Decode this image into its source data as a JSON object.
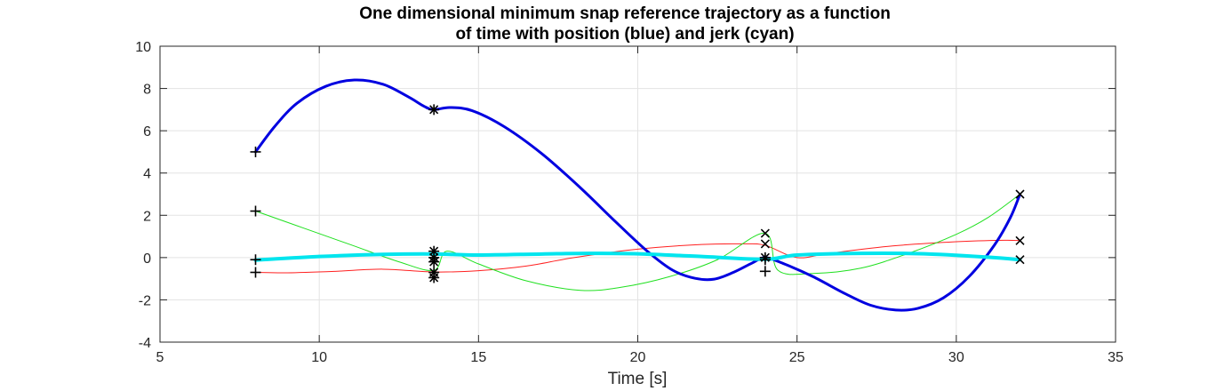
{
  "chart_data": {
    "type": "line",
    "title": [
      "One dimensional minimum snap reference trajectory as a function",
      "of time with position (blue) and jerk (cyan)"
    ],
    "xlabel": "Time [s]",
    "ylabel": "",
    "xlim": [
      5,
      35
    ],
    "ylim": [
      -4,
      10
    ],
    "xticks": [
      5,
      10,
      15,
      20,
      25,
      30,
      35
    ],
    "yticks": [
      -4,
      -2,
      0,
      2,
      4,
      6,
      8,
      10
    ],
    "grid": true,
    "series": [
      {
        "color": "#0000e0",
        "width": 3,
        "points": [
          [
            8,
            5
          ],
          [
            8.6,
            6.2
          ],
          [
            9.3,
            7.3
          ],
          [
            10.2,
            8.1
          ],
          [
            11.1,
            8.4
          ],
          [
            12,
            8.2
          ],
          [
            12.8,
            7.6
          ],
          [
            13.3,
            7.15
          ],
          [
            13.6,
            7
          ],
          [
            14.1,
            7.1
          ],
          [
            14.8,
            6.95
          ],
          [
            15.8,
            6.2
          ],
          [
            17,
            4.9
          ],
          [
            18.2,
            3.3
          ],
          [
            19.3,
            1.7
          ],
          [
            20.3,
            0.3
          ],
          [
            21.1,
            -0.6
          ],
          [
            21.8,
            -0.98
          ],
          [
            22.4,
            -1.02
          ],
          [
            23,
            -0.7
          ],
          [
            23.6,
            -0.25
          ],
          [
            24,
            0
          ],
          [
            24.6,
            -0.3
          ],
          [
            25.5,
            -0.9
          ],
          [
            26.5,
            -1.7
          ],
          [
            27.3,
            -2.25
          ],
          [
            28.1,
            -2.48
          ],
          [
            28.8,
            -2.4
          ],
          [
            29.6,
            -1.9
          ],
          [
            30.4,
            -0.9
          ],
          [
            31.2,
            0.6
          ],
          [
            31.7,
            1.9
          ],
          [
            32,
            3
          ]
        ]
      },
      {
        "color": "#00e5ee",
        "width": 4,
        "points": [
          [
            8,
            -0.12
          ],
          [
            10,
            0.05
          ],
          [
            12,
            0.15
          ],
          [
            13.6,
            0.17
          ],
          [
            15,
            0.12
          ],
          [
            17,
            0.17
          ],
          [
            18.5,
            0.2
          ],
          [
            20,
            0.18
          ],
          [
            22,
            0.05
          ],
          [
            24,
            -0.08
          ],
          [
            25,
            0.12
          ],
          [
            27,
            0.2
          ],
          [
            29,
            0.18
          ],
          [
            31,
            0.02
          ],
          [
            32,
            -0.1
          ]
        ]
      },
      {
        "color": "#ff2020",
        "width": 1,
        "points": [
          [
            8,
            -0.7
          ],
          [
            9,
            -0.72
          ],
          [
            10.5,
            -0.65
          ],
          [
            12,
            -0.55
          ],
          [
            13.6,
            -0.68
          ],
          [
            15,
            -0.62
          ],
          [
            16.5,
            -0.4
          ],
          [
            18,
            0
          ],
          [
            20,
            0.4
          ],
          [
            22,
            0.62
          ],
          [
            23.3,
            0.65
          ],
          [
            24,
            0.58
          ],
          [
            25,
            0
          ],
          [
            26,
            0.2
          ],
          [
            28,
            0.55
          ],
          [
            30,
            0.75
          ],
          [
            31.5,
            0.82
          ],
          [
            32,
            0.8
          ]
        ]
      },
      {
        "color": "#20e020",
        "width": 1,
        "points": [
          [
            8,
            2.2
          ],
          [
            9.5,
            1.4
          ],
          [
            11,
            0.6
          ],
          [
            12.5,
            -0.2
          ],
          [
            13.6,
            -0.6
          ],
          [
            14,
            0.3
          ],
          [
            15,
            -0.3
          ],
          [
            16.5,
            -1.1
          ],
          [
            18.2,
            -1.55
          ],
          [
            19.5,
            -1.4
          ],
          [
            21,
            -0.9
          ],
          [
            22.5,
            -0.1
          ],
          [
            24,
            1.15
          ],
          [
            24.4,
            -0.6
          ],
          [
            25.5,
            -0.75
          ],
          [
            27,
            -0.5
          ],
          [
            28.5,
            0.2
          ],
          [
            30,
            1.1
          ],
          [
            31,
            1.9
          ],
          [
            32,
            3
          ]
        ]
      }
    ],
    "markers": [
      {
        "symbol": "plus",
        "points": [
          [
            8,
            5
          ],
          [
            8,
            2.2
          ],
          [
            8,
            -0.1
          ],
          [
            8,
            -0.7
          ]
        ]
      },
      {
        "symbol": "star",
        "points": [
          [
            13.6,
            7
          ],
          [
            13.6,
            0.3
          ],
          [
            13.6,
            0
          ],
          [
            13.6,
            -0.2
          ],
          [
            13.6,
            -0.7
          ],
          [
            13.6,
            -0.95
          ]
        ]
      },
      {
        "symbol": "plus",
        "points": [
          [
            24,
            0
          ],
          [
            24,
            -0.1
          ],
          [
            24,
            -0.65
          ]
        ]
      },
      {
        "symbol": "x",
        "points": [
          [
            24,
            1.15
          ],
          [
            24,
            0.65
          ],
          [
            24,
            0
          ],
          [
            32,
            3
          ],
          [
            32,
            0.8
          ],
          [
            32,
            -0.1
          ]
        ]
      }
    ]
  }
}
